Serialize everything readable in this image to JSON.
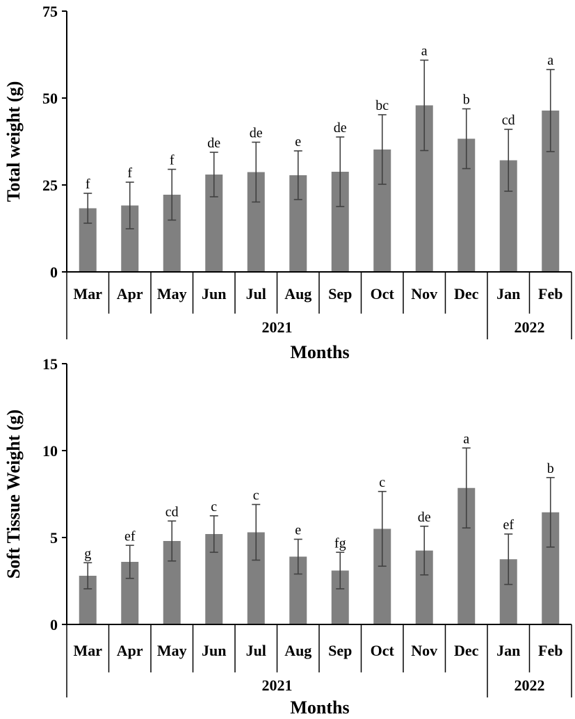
{
  "colors": {
    "bar": "#808080",
    "error_bar": "#404040",
    "axis": "#000000"
  },
  "chart_data": [
    {
      "type": "bar",
      "xlabel": "Months",
      "ylabel": "Total weight (g)",
      "ylim": [
        0,
        75
      ],
      "yticks": [
        "0",
        "25",
        "50",
        "75"
      ],
      "categories": [
        "Mar",
        "Apr",
        "May",
        "Jun",
        "Jul",
        "Aug",
        "Sep",
        "Oct",
        "Nov",
        "Dec",
        "Jan",
        "Feb"
      ],
      "year_groups": [
        {
          "label": "2021",
          "months": 10
        },
        {
          "label": "2022",
          "months": 2
        }
      ],
      "values": [
        18.3,
        19.1,
        22.2,
        28.0,
        28.7,
        27.8,
        28.8,
        35.2,
        47.9,
        38.3,
        32.1,
        46.4
      ],
      "errors": [
        4.3,
        6.7,
        7.3,
        6.4,
        8.6,
        7.0,
        10.0,
        10.0,
        13.0,
        8.6,
        8.9,
        11.8
      ],
      "significance": [
        "f",
        "f",
        "f",
        "de",
        "de",
        "e",
        "de",
        "bc",
        "a",
        "b",
        "cd",
        "a"
      ]
    },
    {
      "type": "bar",
      "xlabel": "Months",
      "ylabel": "Soft Tissue Weight (g)",
      "ylim": [
        0,
        15
      ],
      "yticks": [
        "0",
        "5",
        "10",
        "15"
      ],
      "categories": [
        "Mar",
        "Apr",
        "May",
        "Jun",
        "Jul",
        "Aug",
        "Sep",
        "Oct",
        "Nov",
        "Dec",
        "Jan",
        "Feb"
      ],
      "year_groups": [
        {
          "label": "2021",
          "months": 10
        },
        {
          "label": "2022",
          "months": 2
        }
      ],
      "values": [
        2.8,
        3.6,
        4.8,
        5.2,
        5.3,
        3.9,
        3.1,
        5.5,
        4.25,
        7.85,
        3.75,
        6.45
      ],
      "errors": [
        0.75,
        0.95,
        1.15,
        1.05,
        1.6,
        1.0,
        1.05,
        2.15,
        1.4,
        2.3,
        1.45,
        2.0
      ],
      "significance": [
        "g",
        "ef",
        "cd",
        "c",
        "c",
        "e",
        "fg",
        "c",
        "de",
        "a",
        "ef",
        "b"
      ]
    }
  ]
}
